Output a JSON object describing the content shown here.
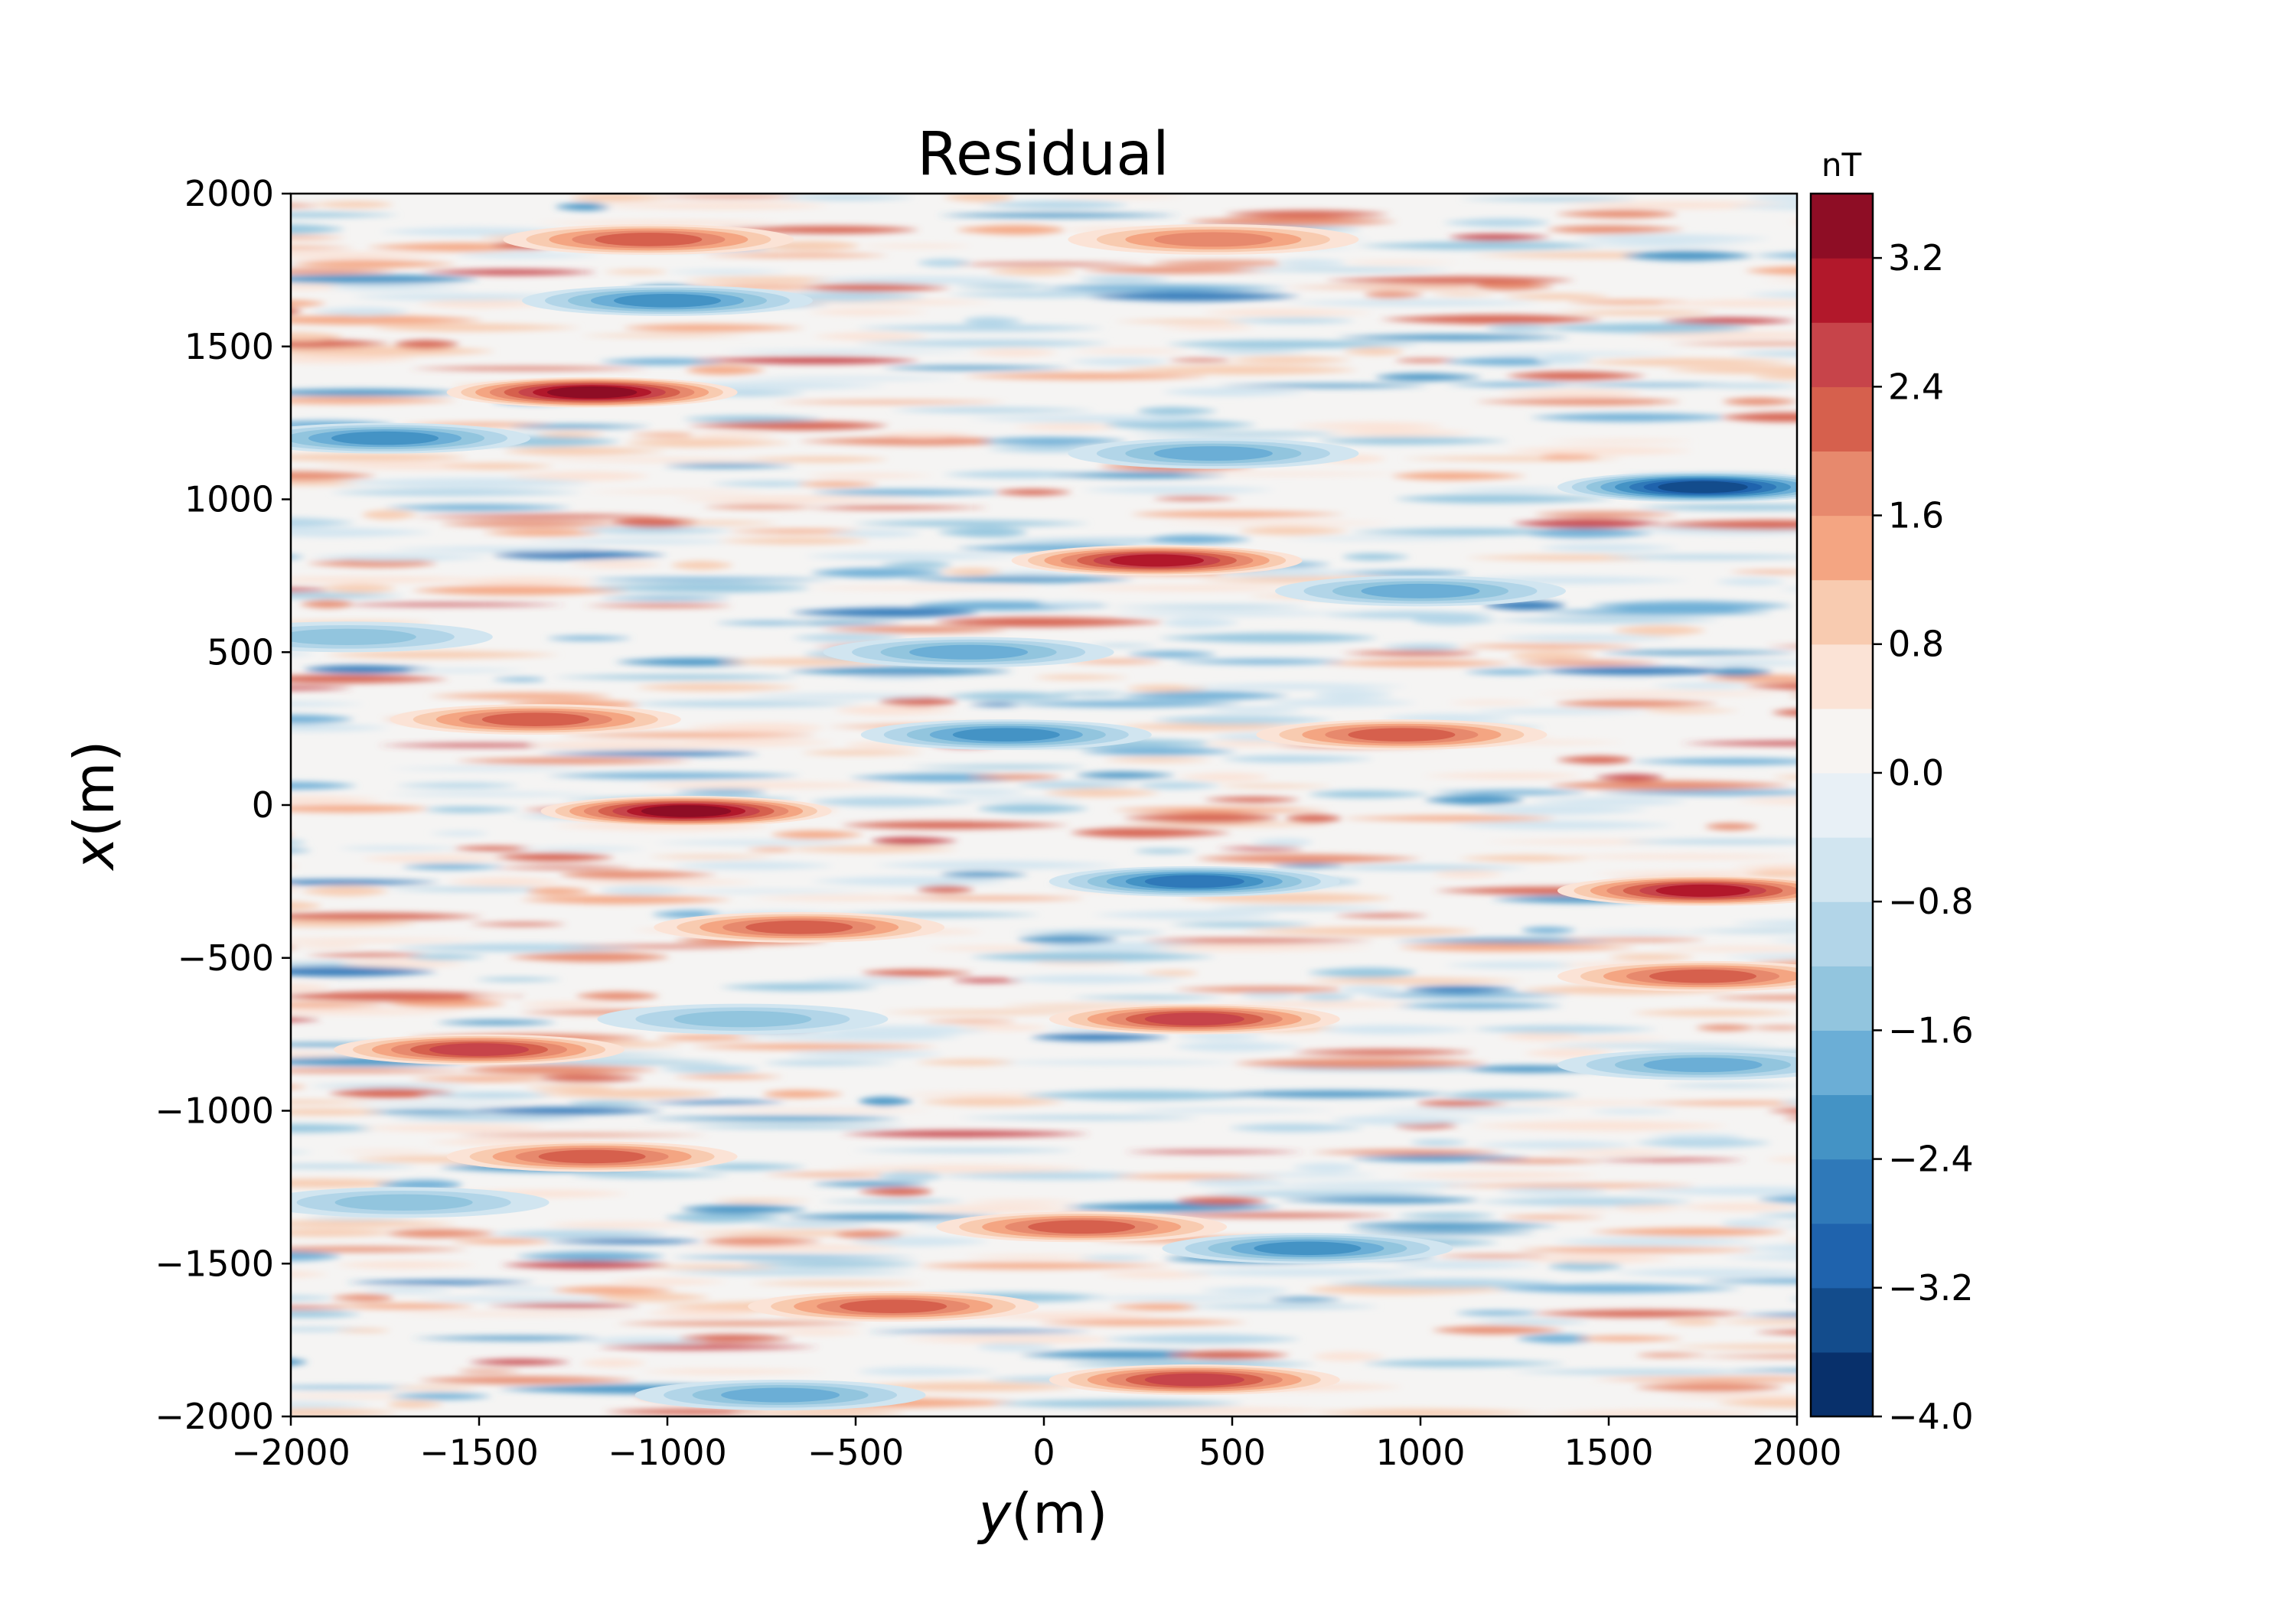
{
  "chart_data": {
    "type": "heatmap",
    "title": "Residual",
    "xlabel_var": "y",
    "xlabel_unit": "(m)",
    "ylabel_var": "x",
    "ylabel_unit": "(m)",
    "xlim": [
      -2000,
      2000
    ],
    "ylim": [
      -2000,
      2000
    ],
    "xticks": [
      -2000,
      -1500,
      -1000,
      -500,
      0,
      500,
      1000,
      1500,
      2000
    ],
    "xtick_labels": [
      "−2000",
      "−1500",
      "−1000",
      "−500",
      "0",
      "500",
      "1000",
      "1500",
      "2000"
    ],
    "yticks": [
      -2000,
      -1500,
      -1000,
      -500,
      0,
      500,
      1000,
      1500,
      2000
    ],
    "ytick_labels": [
      "−2000",
      "−1500",
      "−1000",
      "−500",
      "0",
      "500",
      "1000",
      "1500",
      "2000"
    ],
    "colormap": "RdBu_r",
    "colorbar": {
      "label": "nT",
      "range": [
        -4.0,
        3.6
      ],
      "levels": [
        -4.0,
        -3.6,
        -3.2,
        -2.8,
        -2.4,
        -2.0,
        -1.6,
        -1.2,
        -0.8,
        -0.4,
        0.0,
        0.4,
        0.8,
        1.2,
        1.6,
        2.0,
        2.4,
        2.8,
        3.2,
        3.6
      ],
      "ticks": [
        -4.0,
        -3.2,
        -2.4,
        -1.6,
        -0.8,
        0.0,
        0.8,
        1.6,
        2.4,
        3.2
      ],
      "tick_labels": [
        "−4.0",
        "−3.2",
        "−2.4",
        "−1.6",
        "−0.8",
        "0.0",
        "0.8",
        "1.6",
        "2.4",
        "3.2"
      ],
      "colors": [
        "#08306b",
        "#134c8c",
        "#1f63ad",
        "#2f79b9",
        "#4493c5",
        "#6baed6",
        "#92c5de",
        "#b2d5e8",
        "#d1e5f0",
        "#e8f0f6",
        "#f7f4f2",
        "#fbe3d6",
        "#f8cbb0",
        "#f4a582",
        "#e7896d",
        "#d6604d",
        "#c7444a",
        "#b2182b",
        "#8e0d25"
      ]
    },
    "anomalies": [
      {
        "x": 1850,
        "y": -1050,
        "value": 2.0
      },
      {
        "x": 1850,
        "y": 450,
        "value": 1.6
      },
      {
        "x": 1650,
        "y": -1000,
        "value": -2.0
      },
      {
        "x": 1350,
        "y": -1200,
        "value": 3.2
      },
      {
        "x": 1200,
        "y": -1750,
        "value": -1.8
      },
      {
        "x": 1150,
        "y": 450,
        "value": -1.6
      },
      {
        "x": 1040,
        "y": 1750,
        "value": -3.2
      },
      {
        "x": 800,
        "y": 300,
        "value": 2.6
      },
      {
        "x": 700,
        "y": 1000,
        "value": -1.6
      },
      {
        "x": 550,
        "y": -1850,
        "value": -1.4
      },
      {
        "x": 500,
        "y": -200,
        "value": -1.6
      },
      {
        "x": 280,
        "y": -1350,
        "value": 1.8
      },
      {
        "x": 230,
        "y": -100,
        "value": -2.0
      },
      {
        "x": 230,
        "y": 950,
        "value": 2.0
      },
      {
        "x": -20,
        "y": -950,
        "value": 3.0
      },
      {
        "x": -250,
        "y": 400,
        "value": -2.2
      },
      {
        "x": -280,
        "y": 1750,
        "value": 2.6
      },
      {
        "x": -400,
        "y": -650,
        "value": 1.8
      },
      {
        "x": -560,
        "y": 1750,
        "value": 1.8
      },
      {
        "x": -700,
        "y": 400,
        "value": 2.2
      },
      {
        "x": -700,
        "y": -800,
        "value": -1.4
      },
      {
        "x": -800,
        "y": -1500,
        "value": 2.4
      },
      {
        "x": -850,
        "y": 1750,
        "value": -1.6
      },
      {
        "x": -1150,
        "y": -1200,
        "value": 2.0
      },
      {
        "x": -1300,
        "y": -1700,
        "value": -1.2
      },
      {
        "x": -1380,
        "y": 100,
        "value": 2.0
      },
      {
        "x": -1450,
        "y": 700,
        "value": -1.8
      },
      {
        "x": -1640,
        "y": -400,
        "value": 1.8
      },
      {
        "x": -1880,
        "y": 400,
        "value": 2.4
      },
      {
        "x": -1930,
        "y": -700,
        "value": -1.6
      }
    ]
  }
}
